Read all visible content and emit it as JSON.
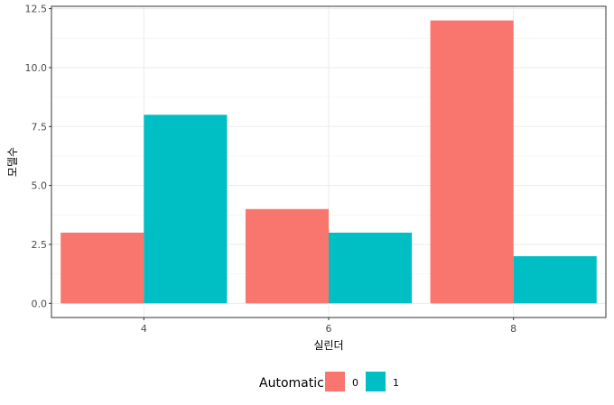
{
  "chart_data": {
    "type": "bar",
    "categories": [
      "4",
      "6",
      "8"
    ],
    "series": [
      {
        "name": "0",
        "color": "#F8766D",
        "values": [
          3,
          4,
          12
        ]
      },
      {
        "name": "1",
        "color": "#00BFC4",
        "values": [
          8,
          3,
          2
        ]
      }
    ],
    "xlabel": "실린더",
    "ylabel": "모델수",
    "ylim": [
      -0.6,
      12.6
    ],
    "yticks": [
      0,
      2.5,
      5,
      7.5,
      10,
      12.5
    ],
    "ytick_labels": [
      "0.0",
      "2.5",
      "5.0",
      "7.5",
      "10.0",
      "12.5"
    ],
    "legend": {
      "title": "Automatic",
      "position": "bottom"
    },
    "grid": true,
    "theme": "bw"
  }
}
